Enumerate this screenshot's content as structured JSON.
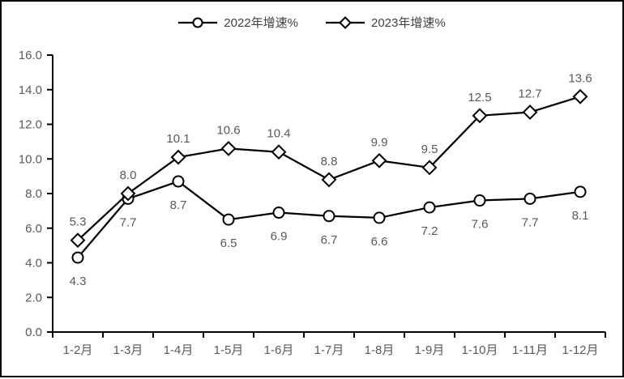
{
  "chart_data": {
    "type": "line",
    "title": "",
    "xlabel": "",
    "ylabel": "",
    "categories": [
      "1-2月",
      "1-3月",
      "1-4月",
      "1-5月",
      "1-6月",
      "1-7月",
      "1-8月",
      "1-9月",
      "1-10月",
      "1-11月",
      "1-12月"
    ],
    "series": [
      {
        "name": "2022年增速%",
        "marker": "circle",
        "label_position": "below",
        "values": [
          4.3,
          7.7,
          8.7,
          6.5,
          6.9,
          6.7,
          6.6,
          7.2,
          7.6,
          7.7,
          8.1
        ]
      },
      {
        "name": "2023年增速%",
        "marker": "diamond",
        "label_position": "above",
        "values": [
          5.3,
          8.0,
          10.1,
          10.6,
          10.4,
          8.8,
          9.9,
          9.5,
          12.5,
          12.7,
          13.6
        ]
      }
    ],
    "ylim": [
      0,
      16
    ],
    "y_tick_step": 2,
    "y_tick_labels": [
      "0.0",
      "2.0",
      "4.0",
      "6.0",
      "8.0",
      "10.0",
      "12.0",
      "14.0",
      "16.0"
    ],
    "grid": false,
    "legend_position": "top-center",
    "colors": {
      "line": "#000000",
      "marker_fill": "#ffffff",
      "data_label": "#595959",
      "axis_label": "#595959",
      "legend_text": "#404040",
      "axis_line": "#000000",
      "frame_border": "#000000"
    }
  }
}
